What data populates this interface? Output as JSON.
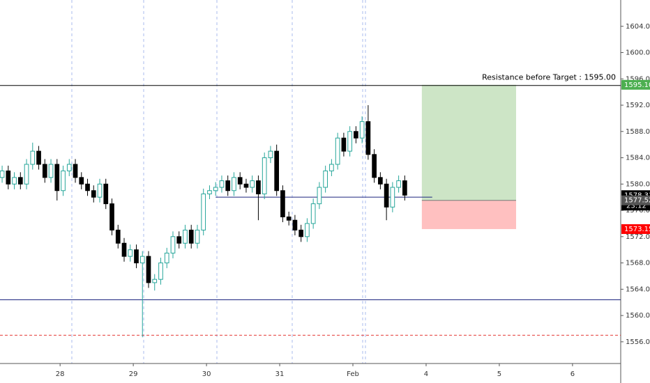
{
  "chart_data": {
    "type": "candlestick",
    "x": [
      -19,
      -17,
      -15,
      -13,
      -11,
      -9,
      -7,
      -5,
      -3,
      -1,
      1,
      3,
      5,
      7,
      9,
      11,
      13,
      15,
      17,
      19,
      21,
      23,
      25,
      27,
      29,
      31,
      33,
      35,
      37,
      39,
      41,
      43,
      45,
      47,
      49,
      51,
      53,
      55,
      57,
      59,
      61,
      63,
      65,
      67,
      69,
      71,
      73,
      75,
      77,
      79,
      81,
      83,
      85,
      87,
      89,
      91,
      93,
      95,
      97,
      99,
      101,
      103,
      105,
      107,
      109,
      111,
      113
    ],
    "open": [
      1581,
      1582,
      1580,
      1581,
      1580,
      1583,
      1585,
      1583,
      1581,
      1583,
      1579,
      1582,
      1583,
      1581,
      1580,
      1579,
      1578,
      1580,
      1577,
      1573,
      1571,
      1569,
      1570,
      1568,
      1569,
      1565,
      1565.5,
      1568,
      1569.5,
      1572,
      1571,
      1573,
      1571,
      1573,
      1578.5,
      1579,
      1579.5,
      1580.5,
      1579,
      1581,
      1580,
      1579.5,
      1580.5,
      1578.5,
      1584,
      1585,
      1579,
      1575,
      1574.5,
      1573,
      1572,
      1574,
      1577,
      1579.5,
      1582,
      1583,
      1587,
      1585,
      1588,
      1587,
      1589.5,
      1584.5,
      1581,
      1580,
      1576.5,
      1579.5,
      1580.5
    ],
    "high": [
      1582.8,
      1582.8,
      1581.8,
      1581.8,
      1583.8,
      1586.3,
      1585.8,
      1583.8,
      1583.8,
      1583.8,
      1582.8,
      1583.8,
      1583.8,
      1581.8,
      1580.8,
      1579.8,
      1580.8,
      1580.8,
      1577.8,
      1573.8,
      1571.8,
      1570.8,
      1570.8,
      1569.8,
      1569.8,
      1566.3,
      1568.8,
      1570.3,
      1572.8,
      1572.8,
      1573.8,
      1573.8,
      1573.8,
      1579.3,
      1579.8,
      1580.3,
      1581.3,
      1581.3,
      1581.8,
      1581.8,
      1580.8,
      1581.3,
      1581.3,
      1584.8,
      1585.8,
      1586,
      1579.8,
      1575.8,
      1575.3,
      1573.8,
      1574.8,
      1577.8,
      1580.3,
      1582.8,
      1583.8,
      1587.8,
      1587.8,
      1588.8,
      1588.8,
      1590.3,
      1592,
      1585.3,
      1581.8,
      1580.8,
      1580.3,
      1581.3,
      1581.3
    ],
    "low": [
      1580.2,
      1579.2,
      1579.2,
      1579.2,
      1579.2,
      1582.2,
      1582.2,
      1580.2,
      1580.2,
      1577.5,
      1578.2,
      1581.2,
      1580.2,
      1579.2,
      1578.2,
      1577.2,
      1577.2,
      1576.2,
      1572.2,
      1570.2,
      1568.2,
      1568.2,
      1567.2,
      1556.7,
      1564.2,
      1563.8,
      1564.7,
      1567.2,
      1568.7,
      1570.2,
      1570.2,
      1570.2,
      1570.2,
      1572.2,
      1577.7,
      1578.2,
      1578.7,
      1578.2,
      1578.2,
      1579.2,
      1578.7,
      1578.7,
      1574.5,
      1577.7,
      1583.2,
      1578.2,
      1574.2,
      1573.7,
      1572.2,
      1571.2,
      1571.2,
      1573.2,
      1576.2,
      1578.7,
      1581.2,
      1582.2,
      1584.2,
      1584.2,
      1586.2,
      1586.2,
      1583.7,
      1580.2,
      1579.2,
      1574.5,
      1575.7,
      1578.7,
      1577.5
    ],
    "close": [
      1582,
      1580,
      1581,
      1580,
      1583,
      1585,
      1583,
      1581,
      1583,
      1579,
      1582,
      1583,
      1581,
      1580,
      1579,
      1578,
      1580,
      1577,
      1573,
      1571,
      1569,
      1570,
      1568,
      1569,
      1565,
      1565.5,
      1568,
      1569.5,
      1572,
      1571,
      1573,
      1571,
      1573,
      1578.5,
      1579,
      1579.5,
      1580.5,
      1579,
      1581,
      1580,
      1579.5,
      1580.5,
      1578.5,
      1584,
      1585,
      1579,
      1575,
      1574.5,
      1573,
      1572,
      1574,
      1577,
      1579.5,
      1582,
      1583,
      1587,
      1585,
      1588,
      1587,
      1589.5,
      1584.5,
      1581,
      1580,
      1576.5,
      1579.5,
      1580.5,
      1578.31
    ],
    "up_color": "#26a69a",
    "down_color": "#000000",
    "xlim": [
      -19.7,
      183.8
    ],
    "ylim": [
      1552.7,
      1608.0
    ],
    "xticks": [
      {
        "value": 0,
        "label": "28"
      },
      {
        "value": 24,
        "label": "29"
      },
      {
        "value": 48,
        "label": "30"
      },
      {
        "value": 72,
        "label": "31"
      },
      {
        "value": 96,
        "label": "Feb"
      },
      {
        "value": 120,
        "label": "4"
      },
      {
        "value": 144,
        "label": "5"
      },
      {
        "value": 168,
        "label": "6"
      }
    ],
    "yticks": [
      {
        "value": 1556,
        "label": "1556.00"
      },
      {
        "value": 1560,
        "label": "1560.00"
      },
      {
        "value": 1564,
        "label": "1564.00"
      },
      {
        "value": 1568,
        "label": "1568.00"
      },
      {
        "value": 1572,
        "label": "1572.00"
      },
      {
        "value": 1576,
        "label": "1576.00"
      },
      {
        "value": 1580,
        "label": "1580.00"
      },
      {
        "value": 1584,
        "label": "1584.00"
      },
      {
        "value": 1588,
        "label": "1588.00"
      },
      {
        "value": 1592,
        "label": "1592.00"
      },
      {
        "value": 1596,
        "label": "1596.00"
      },
      {
        "value": 1600,
        "label": "1600.00"
      },
      {
        "value": 1604,
        "label": "1604.00"
      }
    ],
    "levels": [
      {
        "value": 1595,
        "color": "#000000",
        "dashed": false
      },
      {
        "value": 1562.4,
        "color": "#1a237e",
        "dashed": false
      },
      {
        "value": 1557,
        "color": "#e53935",
        "dashed": true
      }
    ],
    "annotation": "Resistance before Target : 1595.00",
    "segment": {
      "value": 1578,
      "start": 51,
      "end": 122,
      "color": "#1a237e"
    },
    "position": {
      "start": 118.6,
      "end": 149.5,
      "target": {
        "value": 1595.1,
        "label": "1595.10"
      },
      "entry": 1577.52,
      "stop": 1573.15,
      "profit_color": "#cde5c6",
      "loss_color": "#ffc0c0"
    },
    "countdown": "23:12"
  }
}
